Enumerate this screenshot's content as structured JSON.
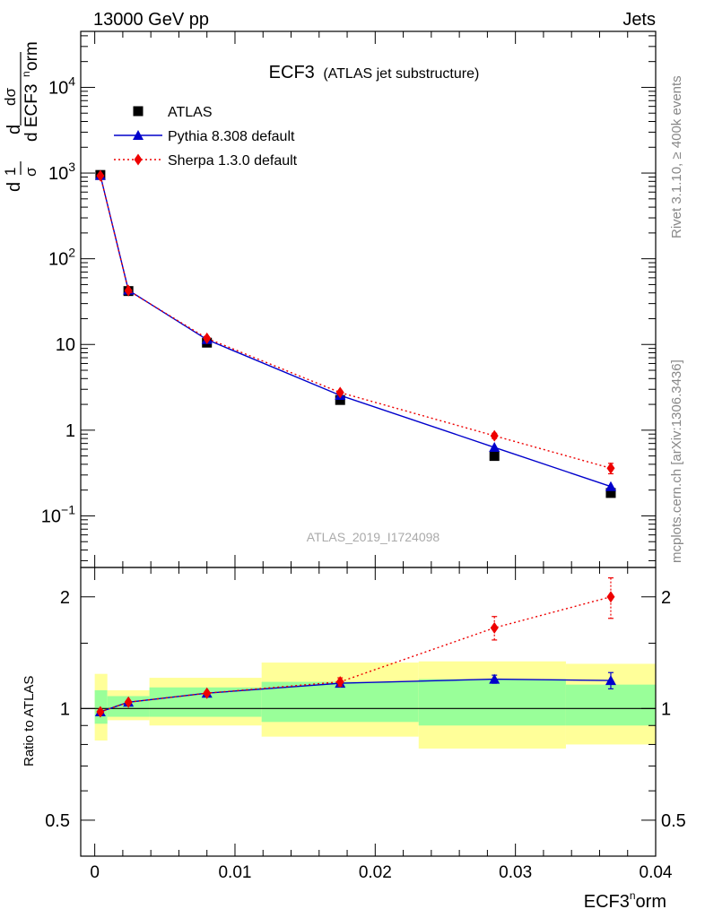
{
  "header": {
    "left": "13000 GeV pp",
    "right": "Jets"
  },
  "side_labels": {
    "rivet": "Rivet 3.1.10, ≥ 400k events",
    "mcplots": "mcplots.cern.ch [arXiv:1306.3436]"
  },
  "chart_data": [
    {
      "type": "scatter",
      "title": "ECF3",
      "subtitle": "(ATLAS jet substructure)",
      "watermark": "ATLAS_2019_I1724098",
      "ylabel": "1/σ dσ/d ECF3norm",
      "yscale": "log",
      "ylim": [
        0.025,
        45000
      ],
      "xlim": [
        -0.001,
        0.04
      ],
      "y_ticks": [
        {
          "v": 0.1,
          "label": "10",
          "exp": "−1"
        },
        {
          "v": 1,
          "label": "1",
          "exp": ""
        },
        {
          "v": 10,
          "label": "10",
          "exp": ""
        },
        {
          "v": 100,
          "label": "10",
          "exp": "2"
        },
        {
          "v": 1000,
          "label": "10",
          "exp": "3"
        },
        {
          "v": 10000,
          "label": "10",
          "exp": "4"
        }
      ],
      "legend_position": "top-left",
      "x": [
        0.0004,
        0.0024,
        0.008,
        0.0175,
        0.0285,
        0.0368
      ],
      "series": [
        {
          "name": "ATLAS",
          "color": "#000000",
          "marker": "square",
          "values": [
            950,
            42,
            10.5,
            2.25,
            0.5,
            0.185
          ]
        },
        {
          "name": "Pythia 8.308 default",
          "color": "#0000cc",
          "marker": "triangle",
          "line": "solid",
          "values": [
            940,
            43,
            11.4,
            2.55,
            0.63,
            0.22
          ]
        },
        {
          "name": "Sherpa 1.3.0 default",
          "color": "#ee0000",
          "marker": "diamond",
          "line": "dotted",
          "values": [
            930,
            42.5,
            11.8,
            2.75,
            0.86,
            0.36
          ],
          "errors": [
            0,
            0,
            0.5,
            0.12,
            0.06,
            0.05
          ]
        }
      ]
    },
    {
      "type": "scatter",
      "ylabel": "Ratio to ATLAS",
      "xlabel": "ECF3norm",
      "yscale": "log",
      "ylim": [
        0.4,
        2.4
      ],
      "xlim": [
        -0.001,
        0.04
      ],
      "x_ticks": [
        0,
        0.01,
        0.02,
        0.03,
        0.04
      ],
      "x_tick_labels": [
        "0",
        "0.01",
        "0.02",
        "0.03",
        "0.04"
      ],
      "y_ticks": [
        0.5,
        1,
        2
      ],
      "y_tick_labels": [
        "0.5",
        "1",
        "2"
      ],
      "y_minor_ticks": [
        0.6,
        0.7,
        0.8,
        0.9,
        1.5
      ],
      "bins": [
        [
          0.0,
          0.0009
        ],
        [
          0.0009,
          0.0039
        ],
        [
          0.0039,
          0.0119
        ],
        [
          0.0119,
          0.0231
        ],
        [
          0.0231,
          0.0336
        ],
        [
          0.0336,
          0.04
        ]
      ],
      "band_outer": [
        [
          0.82,
          1.24
        ],
        [
          0.93,
          1.12
        ],
        [
          0.9,
          1.21
        ],
        [
          0.84,
          1.33
        ],
        [
          0.78,
          1.34
        ],
        [
          0.8,
          1.32
        ]
      ],
      "band_inner": [
        [
          0.91,
          1.12
        ],
        [
          0.95,
          1.08
        ],
        [
          0.95,
          1.14
        ],
        [
          0.92,
          1.18
        ],
        [
          0.9,
          1.2
        ],
        [
          0.9,
          1.16
        ]
      ],
      "x": [
        0.0004,
        0.0024,
        0.008,
        0.0175,
        0.0285,
        0.0368
      ],
      "series": [
        {
          "name": "Pythia 8.308 default",
          "color": "#0000cc",
          "marker": "triangle",
          "line": "solid",
          "values": [
            0.98,
            1.04,
            1.1,
            1.17,
            1.2,
            1.19
          ],
          "errors": [
            0,
            0,
            0,
            0.015,
            0.03,
            0.06
          ]
        },
        {
          "name": "Sherpa 1.3.0 default",
          "color": "#ee0000",
          "marker": "diamond",
          "line": "dotted",
          "values": [
            0.98,
            1.04,
            1.1,
            1.18,
            1.65,
            2.0
          ],
          "errors": [
            0,
            0,
            0,
            0.03,
            0.12,
            0.25
          ]
        }
      ]
    }
  ]
}
